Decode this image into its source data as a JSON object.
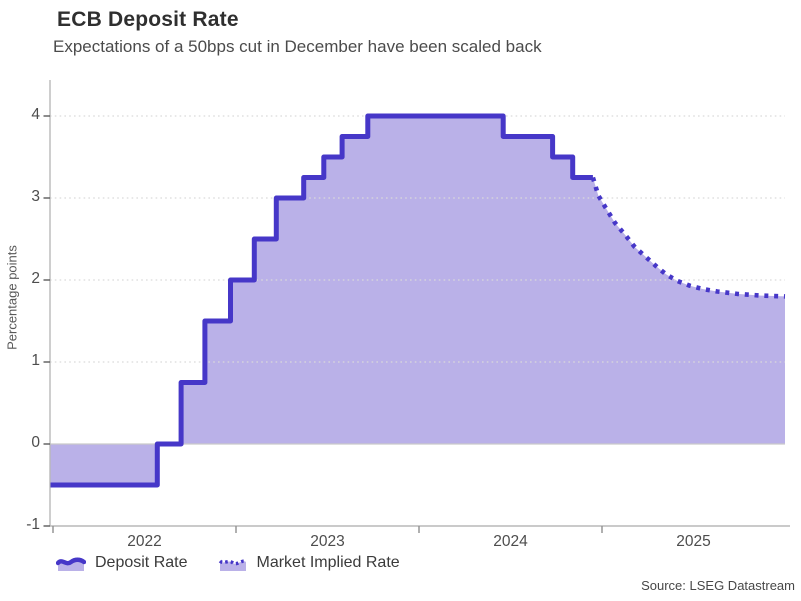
{
  "header": {
    "title": "ECB Deposit Rate",
    "subtitle": "Expectations of a 50bps cut in December have been scaled back"
  },
  "source": "Source: LSEG Datastream",
  "chart_data": {
    "type": "area",
    "title": "ECB Deposit Rate",
    "subtitle": "Expectations of a 50bps cut in December have been scaled back",
    "ylabel": "Percentage points",
    "x_axis": {
      "range": [
        2022,
        2026
      ],
      "ticks": [
        2022,
        2023,
        2024,
        2025
      ],
      "tick_label_position": "mid-year"
    },
    "y_axis": {
      "range": [
        -1,
        4.42
      ],
      "ticks": [
        -1,
        0,
        1,
        2,
        3,
        4
      ],
      "grid": "dotted"
    },
    "colors": {
      "line": "#4637c8",
      "fill": "#bab1e8",
      "grid": "#d9d9d9",
      "zero_line": "#c9c9c9",
      "axis": "#b9b9b9",
      "tick": "#5a5a5a"
    },
    "legend_position": "bottom-left",
    "series": [
      {
        "name": "Deposit Rate",
        "style": "solid-step",
        "unit": "percentage points",
        "points": [
          [
            2022.0,
            -0.5
          ],
          [
            2022.57,
            0.0
          ],
          [
            2022.7,
            0.75
          ],
          [
            2022.83,
            1.5
          ],
          [
            2022.97,
            2.0
          ],
          [
            2023.1,
            2.5
          ],
          [
            2023.22,
            3.0
          ],
          [
            2023.37,
            3.25
          ],
          [
            2023.48,
            3.5
          ],
          [
            2023.58,
            3.75
          ],
          [
            2023.72,
            4.0
          ],
          [
            2024.46,
            3.75
          ],
          [
            2024.73,
            3.5
          ],
          [
            2024.84,
            3.25
          ]
        ],
        "end": 2024.95
      },
      {
        "name": "Market Implied Rate",
        "style": "dotted",
        "unit": "percentage points",
        "points": [
          [
            2024.95,
            3.25
          ],
          [
            2024.98,
            3.03
          ],
          [
            2025.02,
            2.88
          ],
          [
            2025.07,
            2.7
          ],
          [
            2025.13,
            2.54
          ],
          [
            2025.18,
            2.4
          ],
          [
            2025.24,
            2.28
          ],
          [
            2025.3,
            2.16
          ],
          [
            2025.35,
            2.07
          ],
          [
            2025.41,
            1.99
          ],
          [
            2025.48,
            1.93
          ],
          [
            2025.55,
            1.89
          ],
          [
            2025.63,
            1.86
          ],
          [
            2025.74,
            1.83
          ],
          [
            2025.87,
            1.81
          ],
          [
            2026.0,
            1.8
          ]
        ]
      }
    ]
  }
}
